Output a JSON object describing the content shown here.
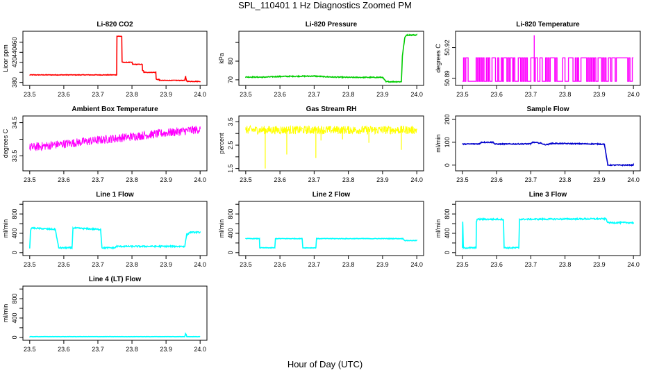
{
  "title": "SPL_110401  1 Hz Diagnostics Zoomed PM",
  "xlabel": "Hour of Day (UTC)",
  "chart_data": [
    {
      "id": "co2",
      "type": "line",
      "title": "Li-820 CO2",
      "ylabel": "Licor ppm",
      "color": "#ff0000",
      "xlim": [
        23.48,
        24.02
      ],
      "ylim": [
        374,
        482
      ],
      "xticks": [
        23.5,
        23.6,
        23.7,
        23.8,
        23.9,
        24.0
      ],
      "yticks": [
        380,
        400,
        420,
        440,
        460
      ],
      "ytick_labels": [
        "380",
        "",
        "420",
        "440",
        "460"
      ],
      "noise": 0.6,
      "x": [
        23.5,
        23.755,
        23.756,
        23.77,
        23.771,
        23.8,
        23.802,
        23.83,
        23.831,
        23.835,
        23.835,
        23.87,
        23.871,
        23.88,
        23.88,
        23.955,
        23.957,
        23.96,
        23.962,
        24.0
      ],
      "y": [
        395,
        395,
        472,
        472,
        420,
        420,
        416,
        416,
        404,
        402,
        400,
        400,
        386,
        386,
        384,
        384,
        392,
        384,
        382,
        382
      ],
      "spikes": [
        [
          23.6,
          396
        ],
        [
          23.958,
          393
        ]
      ]
    },
    {
      "id": "pressure",
      "type": "line",
      "title": "Li-820 Pressure",
      "ylabel": "kPa",
      "color": "#00cc00",
      "xlim": [
        23.48,
        24.02
      ],
      "ylim": [
        67,
        96
      ],
      "xticks": [
        23.5,
        23.6,
        23.7,
        23.8,
        23.9,
        24.0
      ],
      "yticks": [
        70,
        80,
        90
      ],
      "ytick_labels": [
        "70",
        "80",
        ""
      ],
      "noise": 0.25,
      "x": [
        23.5,
        23.55,
        23.6,
        23.7,
        23.75,
        23.8,
        23.9,
        23.91,
        23.955,
        23.958,
        23.965,
        23.97,
        24.0
      ],
      "y": [
        71.5,
        71.4,
        71.8,
        72.0,
        71.5,
        71.3,
        71.3,
        69.0,
        69.0,
        83.0,
        92.5,
        94.0,
        94.0
      ]
    },
    {
      "id": "licor_temp",
      "type": "square_wave",
      "title": "Li-820 Temperature",
      "ylabel": "degrees C",
      "color": "#ff00ff",
      "xlim": [
        23.48,
        24.02
      ],
      "ylim": [
        50.883,
        50.936
      ],
      "xticks": [
        23.5,
        23.6,
        23.7,
        23.8,
        23.9,
        24.0
      ],
      "yticks": [
        50.89,
        50.92
      ],
      "ytick_labels": [
        "50.89",
        "50.92"
      ],
      "low": 50.887,
      "high": 50.91,
      "spike_x": 23.71,
      "spike_y": 50.932
    },
    {
      "id": "ambient_box",
      "type": "noisy_line",
      "title": "Ambient Box Temperature",
      "ylabel": "degrees C",
      "color": "#ff00ff",
      "xlim": [
        23.48,
        24.02
      ],
      "ylim": [
        33.05,
        34.7
      ],
      "xticks": [
        23.5,
        23.6,
        23.7,
        23.8,
        23.9,
        24.0
      ],
      "yticks": [
        33.5,
        34.0,
        34.5
      ],
      "ytick_labels": [
        "33.5",
        "",
        "34.5"
      ],
      "x": [
        23.5,
        24.0
      ],
      "y": [
        33.75,
        34.3
      ],
      "noise": 0.13
    },
    {
      "id": "gas_rh",
      "type": "noisy_line",
      "title": "Gas Stream RH",
      "ylabel": "percent",
      "color": "#ffff00",
      "xlim": [
        23.48,
        24.02
      ],
      "ylim": [
        1.4,
        3.75
      ],
      "xticks": [
        23.5,
        23.6,
        23.7,
        23.8,
        23.9,
        24.0
      ],
      "yticks": [
        1.5,
        2.0,
        2.5,
        3.0,
        3.5
      ],
      "ytick_labels": [
        "1.5",
        "",
        "2.5",
        "",
        "3.5"
      ],
      "x": [
        23.5,
        24.0
      ],
      "y": [
        3.15,
        3.15
      ],
      "noise": 0.18,
      "dips": [
        [
          23.557,
          1.5
        ],
        [
          23.62,
          2.1
        ],
        [
          23.705,
          1.95
        ],
        [
          23.783,
          2.75
        ],
        [
          23.955,
          2.3
        ],
        [
          23.86,
          2.6
        ],
        [
          23.72,
          2.7
        ]
      ]
    },
    {
      "id": "sample_flow",
      "type": "line",
      "title": "Sample Flow",
      "ylabel": "ml/min",
      "color": "#0000cc",
      "xlim": [
        23.48,
        24.02
      ],
      "ylim": [
        -25,
        215
      ],
      "xticks": [
        23.5,
        23.6,
        23.7,
        23.8,
        23.9,
        24.0
      ],
      "yticks": [
        0,
        100,
        200
      ],
      "ytick_labels": [
        "0",
        "100",
        "200"
      ],
      "noise": 2,
      "x": [
        23.5,
        23.55,
        23.555,
        23.59,
        23.595,
        23.7,
        23.705,
        23.73,
        23.74,
        23.75,
        23.76,
        23.915,
        23.925,
        24.0
      ],
      "y": [
        92,
        93,
        100,
        100,
        92,
        93,
        100,
        96,
        90,
        90,
        95,
        92,
        0,
        0
      ]
    },
    {
      "id": "line1",
      "type": "line",
      "title": "Line 1 Flow",
      "ylabel": "ml/min",
      "color": "#00ffff",
      "xlim": [
        23.48,
        24.02
      ],
      "ylim": [
        -60,
        1060
      ],
      "xticks": [
        23.5,
        23.6,
        23.7,
        23.8,
        23.9,
        24.0
      ],
      "yticks": [
        0,
        200,
        400,
        600,
        800,
        1000
      ],
      "ytick_labels": [
        "0",
        "",
        "400",
        "",
        "800",
        ""
      ],
      "noise": 14,
      "x": [
        23.5,
        23.502,
        23.505,
        23.575,
        23.585,
        23.6,
        23.624,
        23.627,
        23.708,
        23.712,
        23.75,
        23.755,
        23.955,
        23.96,
        23.97,
        24.0
      ],
      "y": [
        100,
        420,
        510,
        480,
        100,
        100,
        100,
        510,
        480,
        100,
        100,
        130,
        130,
        360,
        420,
        420
      ]
    },
    {
      "id": "line2",
      "type": "line",
      "title": "Line 2 Flow",
      "ylabel": "ml/min",
      "color": "#00ffff",
      "xlim": [
        23.48,
        24.02
      ],
      "ylim": [
        -60,
        1060
      ],
      "xticks": [
        23.5,
        23.6,
        23.7,
        23.8,
        23.9,
        24.0
      ],
      "yticks": [
        0,
        200,
        400,
        600,
        800,
        1000
      ],
      "ytick_labels": [
        "0",
        "",
        "400",
        "",
        "800",
        ""
      ],
      "noise": 6,
      "x": [
        23.5,
        23.54,
        23.541,
        23.585,
        23.587,
        23.665,
        23.667,
        23.705,
        23.707,
        23.96,
        23.965,
        24.0
      ],
      "y": [
        290,
        290,
        100,
        100,
        290,
        290,
        100,
        100,
        290,
        290,
        250,
        250
      ]
    },
    {
      "id": "line3",
      "type": "line",
      "title": "Line 3 Flow",
      "ylabel": "ml/min",
      "color": "#00ffff",
      "xlim": [
        23.48,
        24.02
      ],
      "ylim": [
        -60,
        1060
      ],
      "xticks": [
        23.5,
        23.6,
        23.7,
        23.8,
        23.9,
        24.0
      ],
      "yticks": [
        0,
        200,
        400,
        600,
        800,
        1000
      ],
      "ytick_labels": [
        "0",
        "",
        "400",
        "",
        "800",
        ""
      ],
      "noise": 14,
      "x": [
        23.5,
        23.501,
        23.503,
        23.54,
        23.541,
        23.543,
        23.62,
        23.622,
        23.665,
        23.667,
        23.92,
        23.925,
        24.0
      ],
      "y": [
        100,
        640,
        100,
        100,
        640,
        690,
        690,
        100,
        100,
        690,
        700,
        620,
        620
      ]
    },
    {
      "id": "line4",
      "type": "line",
      "title": "Line 4 (LT) Flow",
      "ylabel": "ml/min",
      "color": "#00ffff",
      "xlim": [
        23.48,
        24.02
      ],
      "ylim": [
        -60,
        1060
      ],
      "xticks": [
        23.5,
        23.6,
        23.7,
        23.8,
        23.9,
        24.0
      ],
      "yticks": [
        0,
        200,
        400,
        600,
        800,
        1000
      ],
      "ytick_labels": [
        "0",
        "",
        "400",
        "",
        "800",
        ""
      ],
      "noise": 2,
      "x": [
        23.5,
        23.955,
        23.957,
        23.959,
        23.961,
        24.0
      ],
      "y": [
        15,
        15,
        80,
        60,
        15,
        15
      ]
    }
  ]
}
